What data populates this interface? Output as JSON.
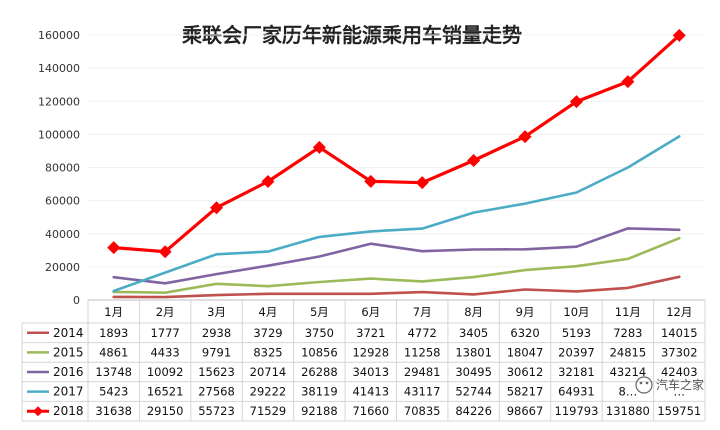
{
  "chart_data": {
    "type": "line",
    "title": "乘联会厂家历年新能源乘用车销量走势",
    "categories": [
      "1月",
      "2月",
      "3月",
      "4月",
      "5月",
      "6月",
      "7月",
      "8月",
      "9月",
      "10月",
      "11月",
      "12月"
    ],
    "ylim": [
      0,
      160000
    ],
    "yticks": [
      "0",
      "20000",
      "40000",
      "60000",
      "80000",
      "100000",
      "120000",
      "140000",
      "160000"
    ],
    "legend_position": "data-table-left",
    "series": [
      {
        "name": "2014",
        "color": "#c0504d",
        "marker": "none",
        "values": [
          1893,
          1777,
          2938,
          3729,
          3750,
          3721,
          4772,
          3405,
          6320,
          5193,
          7283,
          14015
        ],
        "labels": [
          "1893",
          "1777",
          "2938",
          "3729",
          "3750",
          "3721",
          "4772",
          "3405",
          "6320",
          "5193",
          "7283",
          "14015"
        ]
      },
      {
        "name": "2015",
        "color": "#9bbb59",
        "marker": "none",
        "values": [
          4861,
          4433,
          9791,
          8325,
          10856,
          12928,
          11258,
          13801,
          18047,
          20397,
          24815,
          37302
        ],
        "labels": [
          "4861",
          "4433",
          "9791",
          "8325",
          "10856",
          "12928",
          "11258",
          "13801",
          "18047",
          "20397",
          "24815",
          "37302"
        ]
      },
      {
        "name": "2016",
        "color": "#8064a2",
        "marker": "none",
        "values": [
          13748,
          10092,
          15623,
          20714,
          26288,
          34013,
          29481,
          30495,
          30612,
          32181,
          43214,
          42403
        ],
        "labels": [
          "13748",
          "10092",
          "15623",
          "20714",
          "26288",
          "34013",
          "29481",
          "30495",
          "30612",
          "32181",
          "43214",
          "42403"
        ]
      },
      {
        "name": "2017",
        "color": "#4bacc6",
        "marker": "none",
        "values": [
          5423,
          16521,
          27568,
          29222,
          38119,
          41413,
          43117,
          52744,
          58217,
          64931,
          80000,
          98800
        ],
        "labels": [
          "5423",
          "16521",
          "27568",
          "29222",
          "38119",
          "41413",
          "43117",
          "52744",
          "58217",
          "64931",
          "8…",
          "…"
        ]
      },
      {
        "name": "2018",
        "color": "#ff0000",
        "marker": "diamond",
        "values": [
          31638,
          29150,
          55723,
          71529,
          92188,
          71660,
          70835,
          84226,
          98667,
          119793,
          131880,
          159751
        ],
        "labels": [
          "31638",
          "29150",
          "55723",
          "71529",
          "92188",
          "71660",
          "70835",
          "84226",
          "98667",
          "119793",
          "131880",
          "159751"
        ]
      }
    ]
  },
  "watermark": "汽车之家"
}
